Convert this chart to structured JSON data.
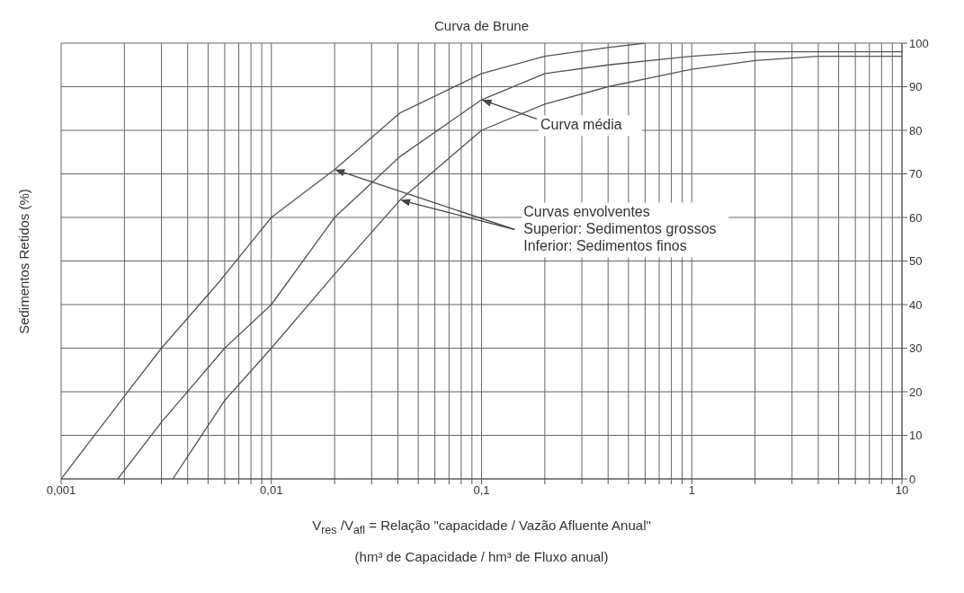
{
  "chart_data": {
    "type": "line",
    "title": "Curva de Brune",
    "xlabel": "V$_{res}$ /V$_{afl}$ = Relação \"capacidade / Vazão Afluente Anual\"\n(hm³ de Capacidade / hm³ de Fluxo anual)",
    "ylabel": "Sedimentos Retidos (%)",
    "log": "x",
    "grid": true,
    "marker": "none",
    "line_style": "solid",
    "xlim": [
      0.001,
      10
    ],
    "ylim": [
      0,
      100
    ],
    "xticks": [
      {
        "value": 0.001,
        "label": "0,001"
      },
      {
        "value": 0.002,
        "label": null
      },
      {
        "value": 0.003,
        "label": null
      },
      {
        "value": 0.004,
        "label": null
      },
      {
        "value": 0.005,
        "label": null
      },
      {
        "value": 0.006,
        "label": null
      },
      {
        "value": 0.007,
        "label": null
      },
      {
        "value": 0.008,
        "label": null
      },
      {
        "value": 0.009,
        "label": null
      },
      {
        "value": 0.01,
        "label": "0,01"
      },
      {
        "value": 0.02,
        "label": null
      },
      {
        "value": 0.03,
        "label": null
      },
      {
        "value": 0.04,
        "label": null
      },
      {
        "value": 0.05,
        "label": null
      },
      {
        "value": 0.06,
        "label": null
      },
      {
        "value": 0.07,
        "label": null
      },
      {
        "value": 0.08,
        "label": null
      },
      {
        "value": 0.09,
        "label": null
      },
      {
        "value": 0.1,
        "label": "0,1"
      },
      {
        "value": 0.2,
        "label": null
      },
      {
        "value": 0.3,
        "label": null
      },
      {
        "value": 0.4,
        "label": null
      },
      {
        "value": 0.5,
        "label": null
      },
      {
        "value": 0.6,
        "label": null
      },
      {
        "value": 0.7,
        "label": null
      },
      {
        "value": 0.8,
        "label": null
      },
      {
        "value": 0.9,
        "label": null
      },
      {
        "value": 1,
        "label": "1"
      },
      {
        "value": 2,
        "label": null
      },
      {
        "value": 3,
        "label": null
      },
      {
        "value": 4,
        "label": null
      },
      {
        "value": 5,
        "label": null
      },
      {
        "value": 6,
        "label": null
      },
      {
        "value": 7,
        "label": null
      },
      {
        "value": 8,
        "label": null
      },
      {
        "value": 9,
        "label": null
      },
      {
        "value": 10,
        "label": "10"
      }
    ],
    "yticks": [
      0,
      10,
      20,
      30,
      40,
      50,
      60,
      70,
      80,
      90,
      100
    ],
    "series": [
      {
        "color": "#555555",
        "x": [
          0.001,
          0.002,
          0.003,
          0.0056,
          0.01,
          0.02,
          0.041,
          0.1,
          0.2,
          0.4,
          0.6
        ],
        "values": [
          0,
          19,
          30,
          45,
          60,
          71,
          84,
          93,
          97,
          99,
          100
        ]
      },
      {
        "color": "#555555",
        "x": [
          0.00186,
          0.003,
          0.006,
          0.01,
          0.02,
          0.041,
          0.1,
          0.2,
          0.4,
          1,
          2,
          10
        ],
        "values": [
          0,
          13,
          30,
          40,
          60,
          74,
          87,
          93,
          95,
          97,
          98,
          98
        ]
      },
      {
        "color": "#555555",
        "x": [
          0.0034,
          0.006,
          0.01,
          0.02,
          0.041,
          0.1,
          0.2,
          0.4,
          1,
          2,
          4,
          10
        ],
        "values": [
          0,
          18,
          30,
          47,
          64,
          80,
          86,
          90,
          94,
          96,
          97,
          97
        ]
      }
    ],
    "annotations": [
      "Curva média",
      "Curvas envolventes\nSuperior: Sedimentos grossos\nInferior: Sedimentos finos"
    ]
  }
}
